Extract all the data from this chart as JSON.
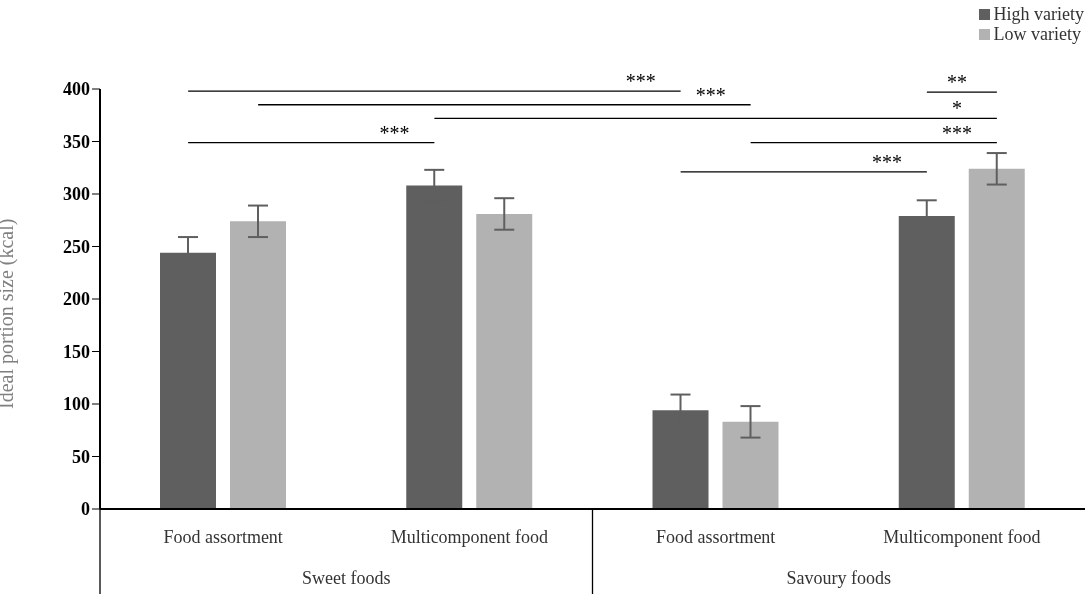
{
  "chart_data": {
    "type": "bar",
    "ylabel": "Ideal portion size (kcal)",
    "categories": [
      "Food assortment",
      "Multicomponent food",
      "Food assortment",
      "Multicomponent food"
    ],
    "series": [
      {
        "name": "High variety",
        "color": "#5f5f5f",
        "values": [
          244,
          308,
          94,
          279
        ],
        "errors": [
          15,
          15,
          15,
          15
        ]
      },
      {
        "name": "Low variety",
        "color": "#b2b2b2",
        "values": [
          274,
          281,
          83,
          324
        ],
        "errors": [
          15,
          15,
          15,
          15
        ]
      }
    ],
    "ylim": [
      0,
      400
    ],
    "yticks": [
      0,
      50,
      100,
      150,
      200,
      250,
      300,
      350,
      400
    ],
    "grid": false,
    "legend": "top right",
    "annotations": [
      "***",
      "***",
      "*",
      "***",
      "***",
      "***",
      "**",
      "Sweet foods",
      "Savoury foods"
    ]
  }
}
